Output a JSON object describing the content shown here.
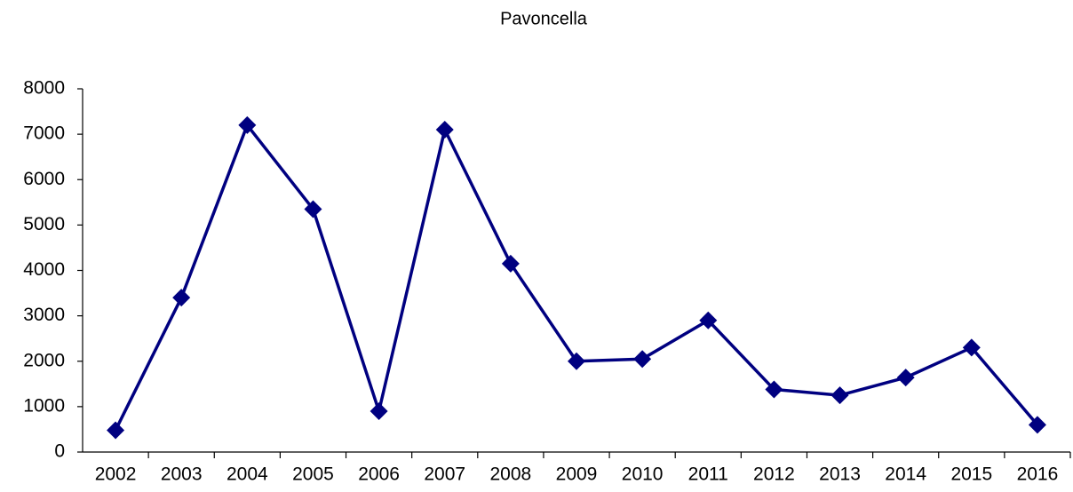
{
  "chart_data": {
    "type": "line",
    "title": "Pavoncella",
    "categories": [
      "2002",
      "2003",
      "2004",
      "2005",
      "2006",
      "2007",
      "2008",
      "2009",
      "2010",
      "2011",
      "2012",
      "2013",
      "2014",
      "2015",
      "2016"
    ],
    "series": [
      {
        "name": "Pavoncella",
        "color": "#000080",
        "values": [
          480,
          3400,
          7200,
          5350,
          900,
          7100,
          4150,
          2000,
          2050,
          2900,
          1380,
          1250,
          1640,
          2300,
          600
        ]
      }
    ],
    "ylim": [
      0,
      8000
    ],
    "yticks": [
      0,
      1000,
      2000,
      3000,
      4000,
      5000,
      6000,
      7000,
      8000
    ],
    "grid": false
  }
}
